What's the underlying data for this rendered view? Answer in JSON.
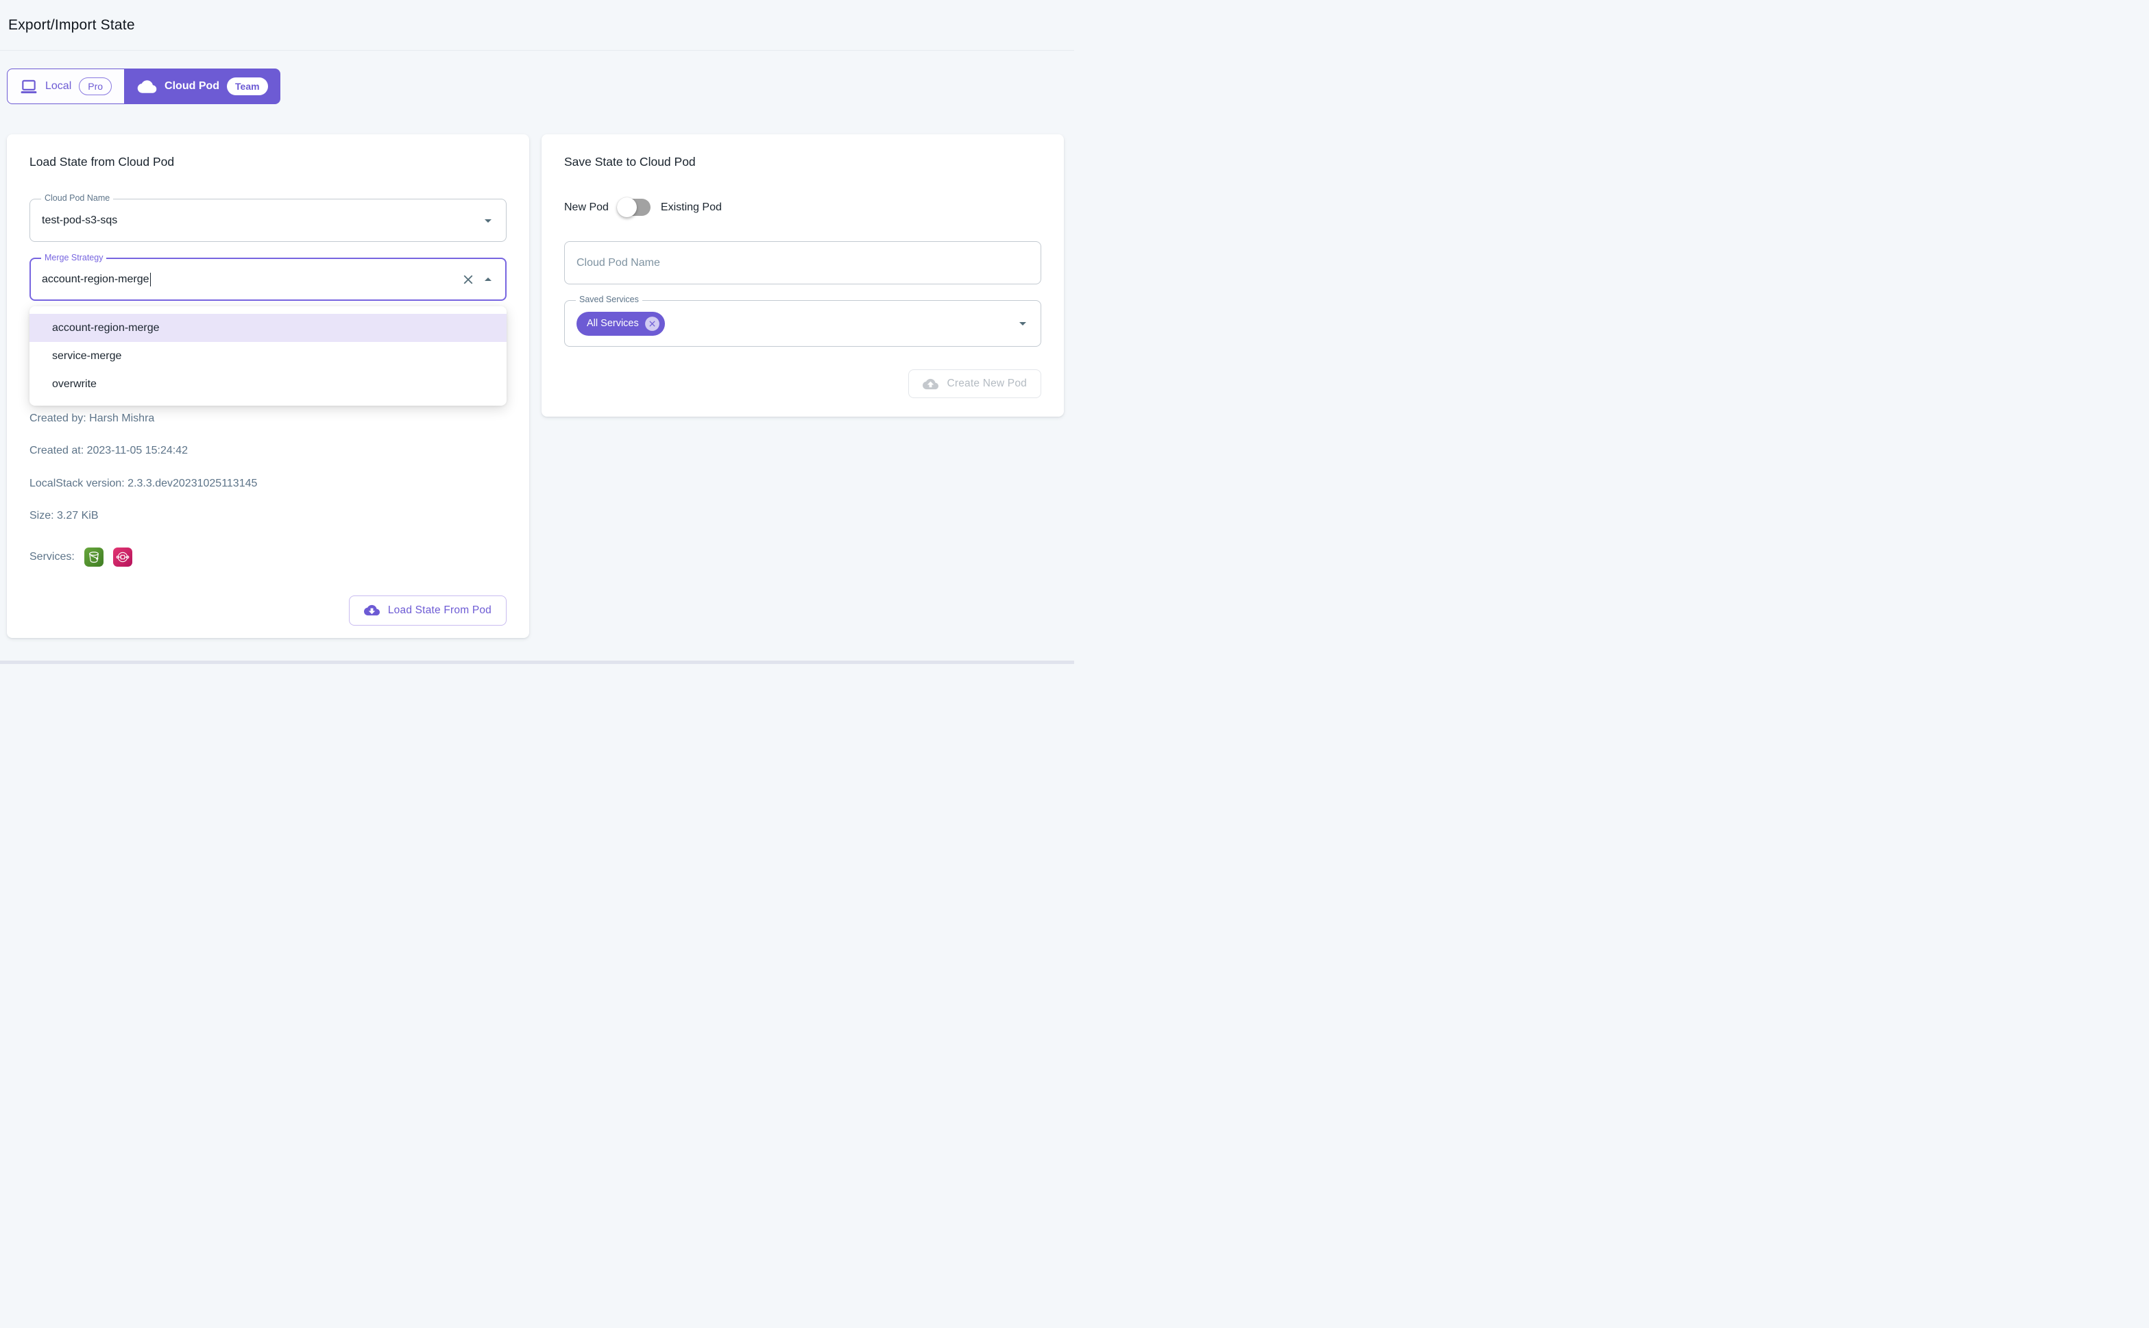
{
  "page": {
    "title": "Export/Import State"
  },
  "tabs": {
    "local": {
      "label": "Local",
      "badge": "Pro",
      "icon": "laptop-icon"
    },
    "cloud_pod": {
      "label": "Cloud Pod",
      "badge": "Team",
      "icon": "cloud-icon"
    }
  },
  "load_card": {
    "title": "Load State from Cloud Pod",
    "pod_name_field": {
      "label": "Cloud Pod Name",
      "value": "test-pod-s3-sqs",
      "trailing_icon": "arrow-drop-down-icon"
    },
    "merge_field": {
      "label": "Merge Strategy",
      "value": "account-region-merge",
      "state": "focused-open",
      "trailing_icons": [
        "close-icon",
        "arrow-drop-up-icon"
      ]
    },
    "merge_options": [
      "account-region-merge",
      "service-merge",
      "overwrite"
    ],
    "selected_option_index": 0,
    "meta": {
      "created_by": "Created by: Harsh Mishra",
      "created_at": "Created at: 2023-11-05 15:24:42",
      "version": "LocalStack version: 2.3.3.dev20231025113145",
      "size": "Size: 3.27 KiB",
      "services_label": "Services:"
    },
    "services": [
      "s3",
      "sqs"
    ],
    "load_button": {
      "label": "Load State From Pod",
      "icon": "cloud-download-icon"
    }
  },
  "save_card": {
    "title": "Save State to Cloud Pod",
    "pod_mode_toggle": {
      "left_label": "New Pod",
      "right_label": "Existing Pod",
      "state": "off"
    },
    "pod_name_input": {
      "placeholder": "Cloud Pod Name",
      "value": ""
    },
    "services_field": {
      "label": "Saved Services",
      "chip": "All Services",
      "chip_icon": "cancel-icon",
      "trailing_icon": "arrow-drop-down-icon"
    },
    "create_button": {
      "label": "Create New Pod",
      "icon": "cloud-upload-icon",
      "disabled": true
    }
  },
  "colors": {
    "primary": "#6d5bd4",
    "primary_focus": "#7765e0",
    "page_bg": "#f4f7fa",
    "text_dark": "#18222c",
    "text_slate": "#5d7489",
    "border_gray": "#c3cad1",
    "menu_highlight": "#e9e4f9",
    "disabled_text": "#b4bbc2",
    "disabled_border": "#e3e6ea",
    "icon_slate": "#546e7a",
    "chip_delete_bg": "#d2cbf2",
    "scrollbar": "#e0e3ed",
    "s3_light": "#67a63c",
    "s3_dark": "#3f7d23",
    "sqs_light": "#e23572",
    "sqs_dark": "#b5135b"
  }
}
